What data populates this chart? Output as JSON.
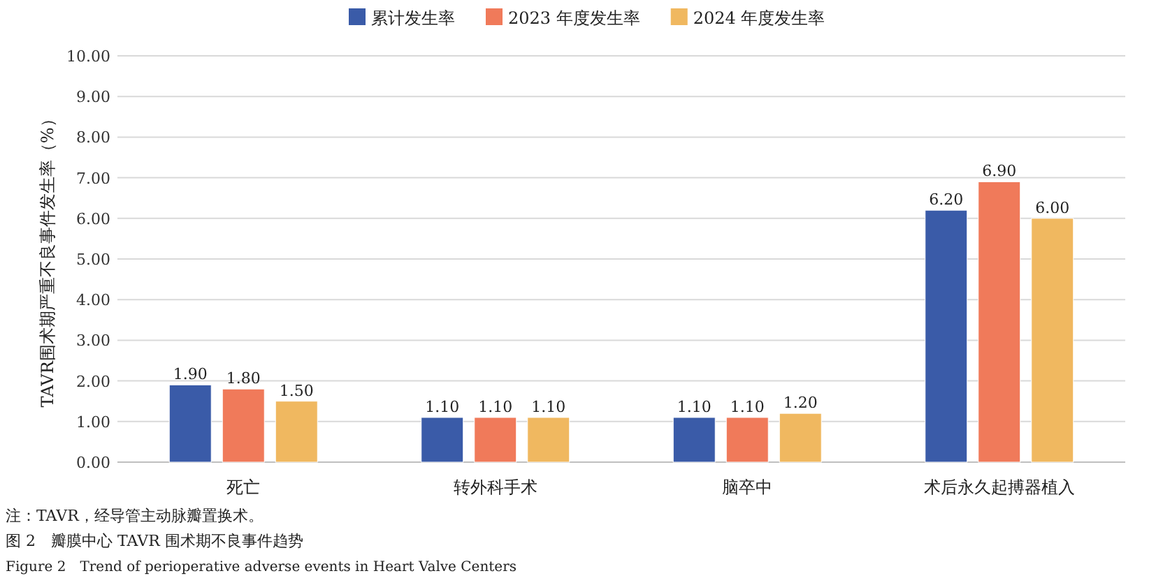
{
  "chart_data": {
    "type": "bar",
    "categories": [
      "死亡",
      "转外科手术",
      "脑卒中",
      "术后永久起搏器植入"
    ],
    "ylabel": "TAVR围术期严重不良事件发生率（%）",
    "series": [
      {
        "name": "累计发生率",
        "color": "#3a5ba8",
        "values": [
          1.9,
          1.1,
          1.1,
          6.2
        ],
        "value_labels": [
          "1.90",
          "1.10",
          "1.10",
          "6.20"
        ]
      },
      {
        "name": "2023 年度发生率",
        "color": "#f07a5a",
        "values": [
          1.8,
          1.1,
          1.1,
          6.9
        ],
        "value_labels": [
          "1.80",
          "1.10",
          "1.10",
          "6.90"
        ]
      },
      {
        "name": "2024 年度发生率",
        "color": "#f0b860",
        "values": [
          1.5,
          1.1,
          1.2,
          6.0
        ],
        "value_labels": [
          "1.50",
          "1.10",
          "1.20",
          "6.00"
        ]
      }
    ],
    "ylim": [
      0,
      10
    ],
    "yticks": [
      {
        "value": 0,
        "label": "0.00"
      },
      {
        "value": 1,
        "label": "1.00"
      },
      {
        "value": 2,
        "label": "2.00"
      },
      {
        "value": 3,
        "label": "3.00"
      },
      {
        "value": 4,
        "label": "4.00"
      },
      {
        "value": 5,
        "label": "5.00"
      },
      {
        "value": 6,
        "label": "6.00"
      },
      {
        "value": 7,
        "label": "7.00"
      },
      {
        "value": 8,
        "label": "8.00"
      },
      {
        "value": 9,
        "label": "9.00"
      },
      {
        "value": 10,
        "label": "10.00"
      }
    ],
    "grid": "y",
    "legend": "top",
    "annotations": [
      "注：TAVR，经导管主动脉瓣置换术。",
      "图 2　瓣膜中心 TAVR 围术期不良事件趋势",
      "Figure 2　Trend of perioperative adverse events in Heart Valve Centers"
    ]
  }
}
